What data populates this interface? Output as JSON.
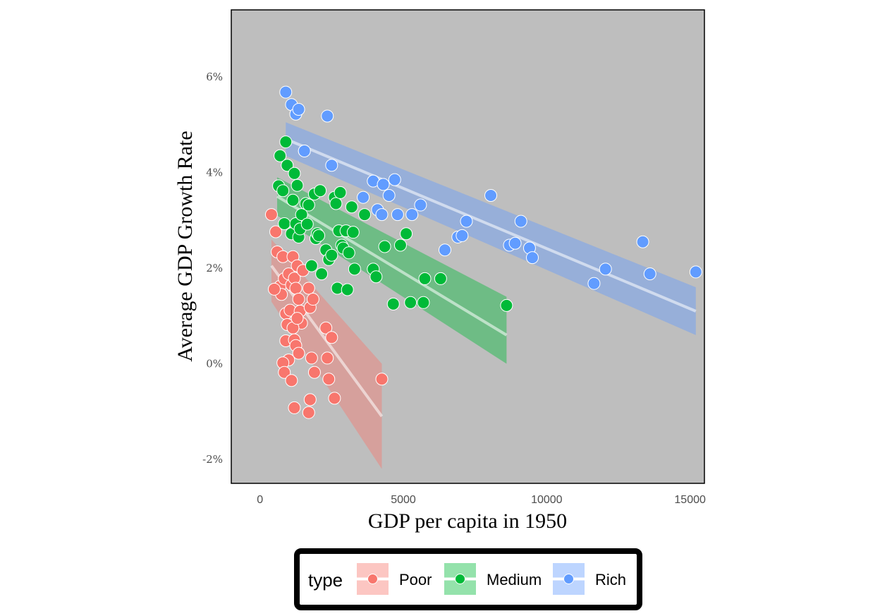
{
  "chart_data": {
    "type": "scatter",
    "xlabel": "GDP per capita in 1950",
    "ylabel": "Average GDP Growth Rate",
    "xlim": [
      -1000,
      15500
    ],
    "ylim": [
      -2.5,
      7.4
    ],
    "x_ticks": [
      {
        "value": 0,
        "label": "0"
      },
      {
        "value": 5000,
        "label": "5000"
      },
      {
        "value": 10000,
        "label": "10000"
      },
      {
        "value": 15000,
        "label": "15000"
      }
    ],
    "y_ticks": [
      {
        "value": -2,
        "label": "-2%"
      },
      {
        "value": 0,
        "label": "0%"
      },
      {
        "value": 2,
        "label": "2%"
      },
      {
        "value": 4,
        "label": "4%"
      },
      {
        "value": 6,
        "label": "6%"
      }
    ],
    "grid": false,
    "panel_background": "#bebebe",
    "legend": {
      "title": "type",
      "position": "bottom",
      "entries": [
        "Poor",
        "Medium",
        "Rich"
      ]
    },
    "series": [
      {
        "name": "Poor",
        "color": "#f8766d",
        "fit": {
          "x": [
            400,
            4250
          ],
          "y": [
            2.05,
            -1.1
          ],
          "band_upper": [
            2.6,
            0.0
          ],
          "band_lower": [
            1.3,
            -2.2
          ]
        },
        "points": [
          [
            400,
            3.12
          ],
          [
            550,
            2.76
          ],
          [
            600,
            2.34
          ],
          [
            700,
            1.62
          ],
          [
            750,
            1.45
          ],
          [
            500,
            1.56
          ],
          [
            800,
            2.24
          ],
          [
            850,
            1.78
          ],
          [
            900,
            1.05
          ],
          [
            950,
            0.82
          ],
          [
            1000,
            1.88
          ],
          [
            1050,
            1.12
          ],
          [
            1100,
            1.65
          ],
          [
            1150,
            2.24
          ],
          [
            1200,
            1.79
          ],
          [
            1250,
            1.58
          ],
          [
            1300,
            2.05
          ],
          [
            1350,
            1.35
          ],
          [
            1400,
            1.1
          ],
          [
            1450,
            0.85
          ],
          [
            1500,
            1.95
          ],
          [
            900,
            0.48
          ],
          [
            1000,
            0.08
          ],
          [
            800,
            0.02
          ],
          [
            850,
            -0.18
          ],
          [
            1150,
            0.75
          ],
          [
            1200,
            0.5
          ],
          [
            1250,
            0.38
          ],
          [
            1300,
            0.95
          ],
          [
            1350,
            0.22
          ],
          [
            1100,
            -0.35
          ],
          [
            1200,
            -0.92
          ],
          [
            1700,
            -1.02
          ],
          [
            1750,
            -0.75
          ],
          [
            1800,
            0.12
          ],
          [
            1900,
            -0.18
          ],
          [
            1700,
            1.58
          ],
          [
            1750,
            1.18
          ],
          [
            1850,
            1.35
          ],
          [
            2300,
            0.75
          ],
          [
            2350,
            0.12
          ],
          [
            2400,
            -0.32
          ],
          [
            2500,
            0.55
          ],
          [
            2600,
            -0.72
          ],
          [
            4250,
            -0.32
          ]
        ]
      },
      {
        "name": "Medium",
        "color": "#00ba38",
        "fit": {
          "x": [
            600,
            8600
          ],
          "y": [
            3.5,
            0.6
          ],
          "band_upper": [
            3.9,
            1.4
          ],
          "band_lower": [
            3.1,
            0.0
          ]
        },
        "points": [
          [
            650,
            3.72
          ],
          [
            700,
            4.35
          ],
          [
            800,
            3.62
          ],
          [
            850,
            2.93
          ],
          [
            900,
            4.64
          ],
          [
            950,
            4.15
          ],
          [
            1100,
            2.72
          ],
          [
            1150,
            3.42
          ],
          [
            1200,
            3.98
          ],
          [
            1250,
            2.93
          ],
          [
            1300,
            3.73
          ],
          [
            1350,
            2.65
          ],
          [
            1400,
            2.82
          ],
          [
            1450,
            3.12
          ],
          [
            1550,
            4.45
          ],
          [
            1600,
            3.35
          ],
          [
            1650,
            2.92
          ],
          [
            1700,
            3.32
          ],
          [
            1800,
            2.05
          ],
          [
            1900,
            3.55
          ],
          [
            1950,
            2.62
          ],
          [
            2000,
            2.72
          ],
          [
            2050,
            2.68
          ],
          [
            2100,
            3.62
          ],
          [
            2150,
            1.88
          ],
          [
            2300,
            2.38
          ],
          [
            2400,
            2.18
          ],
          [
            2500,
            2.27
          ],
          [
            2600,
            3.48
          ],
          [
            2650,
            3.35
          ],
          [
            2700,
            1.58
          ],
          [
            2750,
            2.78
          ],
          [
            2800,
            3.58
          ],
          [
            2850,
            2.48
          ],
          [
            2900,
            2.42
          ],
          [
            3000,
            2.78
          ],
          [
            3050,
            1.55
          ],
          [
            3100,
            2.32
          ],
          [
            3200,
            3.28
          ],
          [
            3250,
            2.75
          ],
          [
            3300,
            1.98
          ],
          [
            3650,
            3.12
          ],
          [
            3950,
            1.98
          ],
          [
            4050,
            1.82
          ],
          [
            4350,
            2.45
          ],
          [
            4650,
            1.25
          ],
          [
            4900,
            2.48
          ],
          [
            5100,
            2.72
          ],
          [
            5250,
            1.28
          ],
          [
            5700,
            1.28
          ],
          [
            5750,
            1.78
          ],
          [
            6300,
            1.78
          ],
          [
            8600,
            1.22
          ]
        ]
      },
      {
        "name": "Rich",
        "color": "#619cff",
        "fit": {
          "x": [
            900,
            15200
          ],
          "y": [
            4.7,
            1.1
          ],
          "band_upper": [
            5.05,
            1.6
          ],
          "band_lower": [
            4.35,
            0.6
          ]
        },
        "points": [
          [
            900,
            5.68
          ],
          [
            1100,
            5.42
          ],
          [
            1250,
            5.22
          ],
          [
            1350,
            5.32
          ],
          [
            1550,
            4.45
          ],
          [
            2350,
            5.18
          ],
          [
            2500,
            4.15
          ],
          [
            3600,
            3.48
          ],
          [
            3950,
            3.82
          ],
          [
            4100,
            3.22
          ],
          [
            4250,
            3.12
          ],
          [
            4300,
            3.75
          ],
          [
            4500,
            3.52
          ],
          [
            4700,
            3.85
          ],
          [
            4800,
            3.12
          ],
          [
            5300,
            3.12
          ],
          [
            5600,
            3.32
          ],
          [
            6450,
            2.38
          ],
          [
            6900,
            2.65
          ],
          [
            7050,
            2.68
          ],
          [
            7200,
            2.98
          ],
          [
            8050,
            3.52
          ],
          [
            8700,
            2.48
          ],
          [
            8900,
            2.52
          ],
          [
            9100,
            2.98
          ],
          [
            9400,
            2.42
          ],
          [
            9500,
            2.22
          ],
          [
            11650,
            1.68
          ],
          [
            12050,
            1.98
          ],
          [
            13350,
            2.55
          ],
          [
            13600,
            1.88
          ],
          [
            15200,
            1.92
          ]
        ]
      }
    ]
  }
}
